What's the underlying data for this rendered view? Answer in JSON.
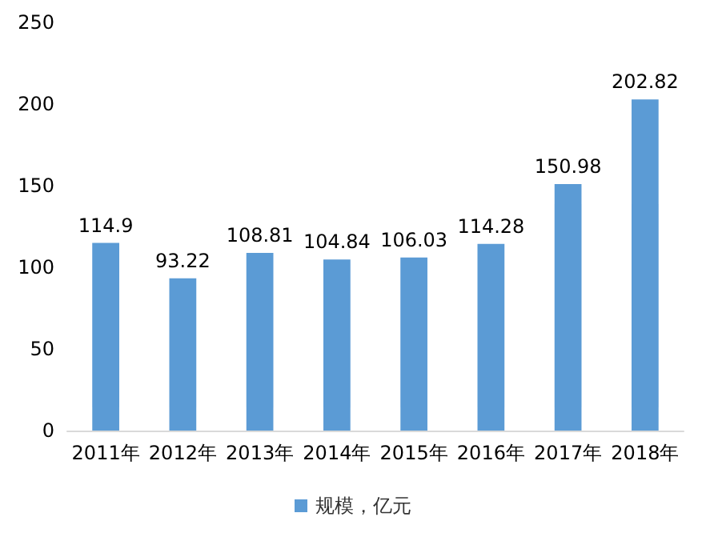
{
  "chart_data": {
    "type": "bar",
    "categories": [
      "2011年",
      "2012年",
      "2013年",
      "2014年",
      "2015年",
      "2016年",
      "2017年",
      "2018年"
    ],
    "series": [
      {
        "name": "规模，亿元",
        "color": "#5b9bd5",
        "values": [
          114.9,
          93.22,
          108.81,
          104.84,
          106.03,
          114.28,
          150.98,
          202.82
        ]
      }
    ],
    "ylim": [
      0,
      250
    ],
    "yticks": [
      0,
      50,
      100,
      150,
      200,
      250
    ],
    "grid": false,
    "legend": "bottom",
    "data_labels": true
  }
}
